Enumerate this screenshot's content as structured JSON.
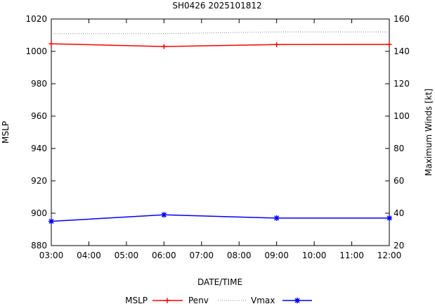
{
  "chart_data": {
    "type": "line",
    "title": "SH0426 2025101812",
    "xlabel": "DATE/TIME",
    "ylabel_left": "MSLP",
    "ylabel_right": "Maximum Winds [kt]",
    "x_ticks": [
      "03:00",
      "04:00",
      "05:00",
      "06:00",
      "07:00",
      "08:00",
      "09:00",
      "10:00",
      "11:00",
      "12:00"
    ],
    "x_hours": [
      3,
      4,
      5,
      6,
      7,
      8,
      9,
      10,
      11,
      12
    ],
    "xlim": [
      3,
      12
    ],
    "ylim_left": [
      880,
      1020
    ],
    "yticks_left": [
      880,
      900,
      920,
      940,
      960,
      980,
      1000,
      1020
    ],
    "ylim_right": [
      20,
      160
    ],
    "yticks_right": [
      20,
      40,
      60,
      80,
      100,
      120,
      140,
      160
    ],
    "grid": false,
    "legend_position": "bottom",
    "legend": [
      {
        "label": "MSLP",
        "style": "none"
      },
      {
        "label": "Penv",
        "style": "red-plus"
      },
      {
        "label": "Vmax",
        "style": "dotted"
      },
      {
        "label": "",
        "style": "blue-star"
      }
    ],
    "series": [
      {
        "key": "mslp",
        "axis": "left",
        "color": "#ff0000",
        "marker": "plus",
        "dash": "",
        "x": [
          3,
          6,
          9,
          12
        ],
        "values": [
          1004.7,
          1003,
          1004.2,
          1004.3
        ]
      },
      {
        "key": "penv",
        "axis": "left",
        "color": "#888888",
        "marker": "none",
        "dash": "1,2",
        "x": [
          3,
          6,
          9,
          12
        ],
        "values": [
          1011,
          1011,
          1012,
          1012
        ]
      },
      {
        "key": "vmax",
        "axis": "right",
        "color": "#0000ff",
        "marker": "star",
        "dash": "",
        "x": [
          3,
          6,
          9,
          12
        ],
        "values": [
          35,
          39,
          37,
          37
        ]
      }
    ]
  }
}
